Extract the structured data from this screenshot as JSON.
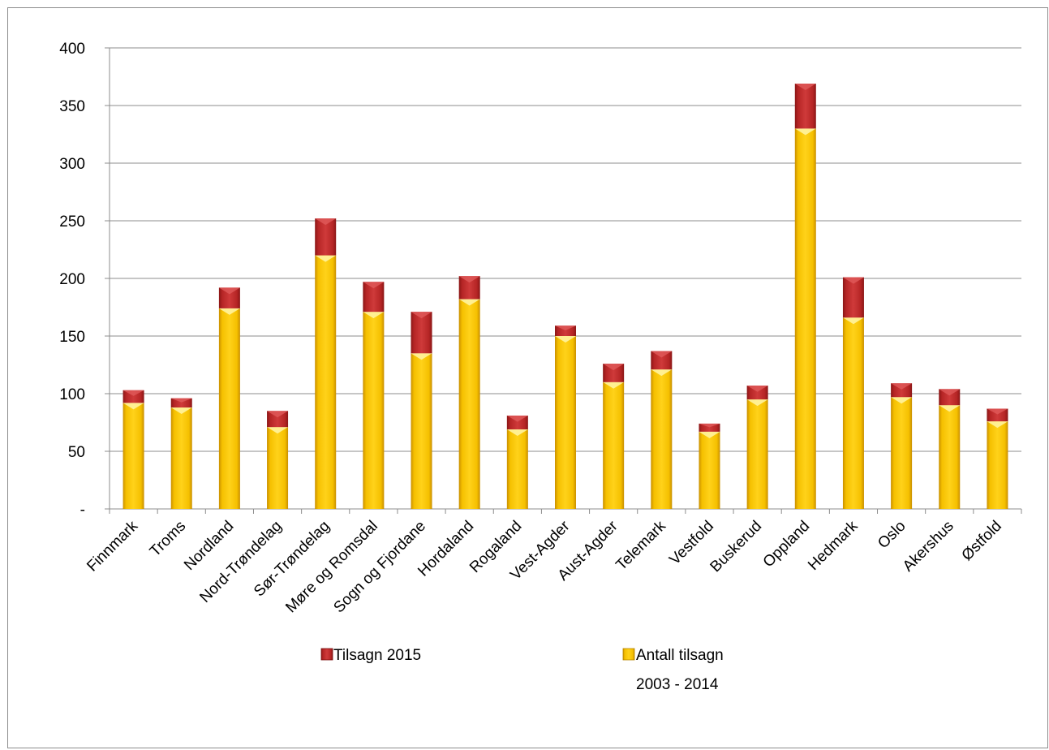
{
  "chart_data": {
    "type": "bar",
    "stacked": true,
    "categories": [
      "Finnmark",
      "Troms",
      "Nordland",
      "Nord-Trøndelag",
      "Sør-Trøndelag",
      "Møre og Romsdal",
      "Sogn og Fjordane",
      "Hordaland",
      "Rogaland",
      "Vest-Agder",
      "Aust-Agder",
      "Telemark",
      "Vestfold",
      "Buskerud",
      "Oppland",
      "Hedmark",
      "Oslo",
      "Akershus",
      "Østfold"
    ],
    "series": [
      {
        "name": "Antall tilsagn 2003 - 2014",
        "color": "#f5c000",
        "values": [
          92,
          88,
          174,
          71,
          220,
          171,
          135,
          182,
          69,
          150,
          110,
          121,
          67,
          95,
          330,
          166,
          97,
          90,
          76
        ]
      },
      {
        "name": "Tilsagn 2015",
        "color": "#b22222",
        "values": [
          11,
          8,
          18,
          14,
          32,
          26,
          36,
          20,
          12,
          9,
          16,
          16,
          7,
          12,
          39,
          35,
          12,
          14,
          11
        ]
      }
    ],
    "ylim": [
      0,
      400
    ],
    "yticks": [
      0,
      50,
      100,
      150,
      200,
      250,
      300,
      350,
      400
    ],
    "ytick_labels": [
      "-",
      "50",
      "100",
      "150",
      "200",
      "250",
      "300",
      "350",
      "400"
    ],
    "grid": true,
    "legend_position": "bottom"
  },
  "legend": {
    "item1": "Tilsagn 2015",
    "item2_line1": "Antall tilsagn",
    "item2_line2": "2003 - 2014"
  }
}
